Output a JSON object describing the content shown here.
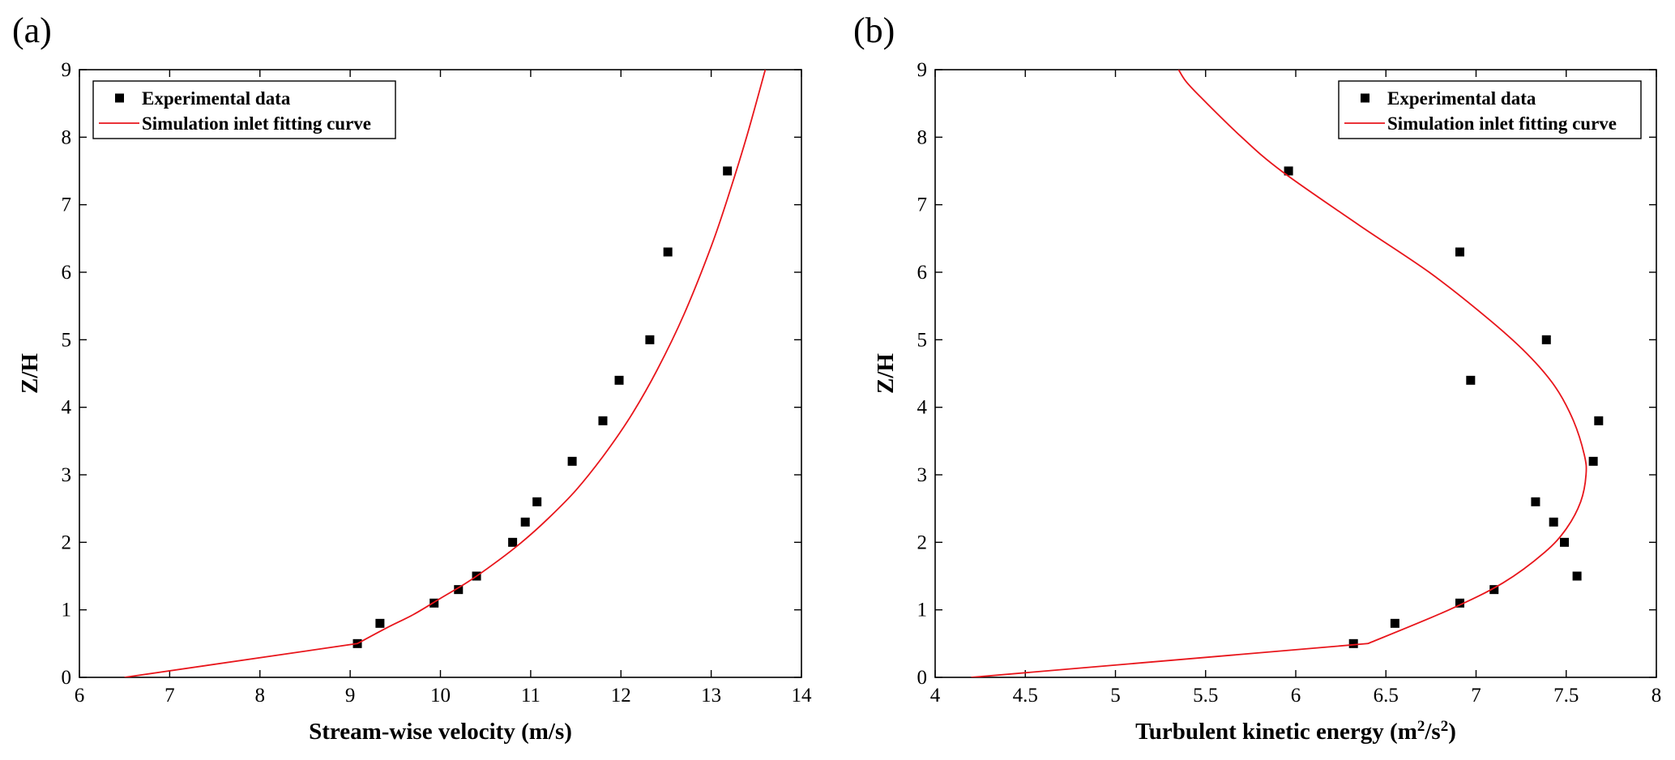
{
  "chart_data": [
    {
      "type": "scatter",
      "panel_label": "(a)",
      "xlabel": "Stream-wise velocity (m/s)",
      "xlabel_sup": null,
      "ylabel": "Z/H",
      "xlim": [
        6,
        14
      ],
      "ylim": [
        0,
        9
      ],
      "xticks": [
        6,
        7,
        8,
        9,
        10,
        11,
        12,
        13,
        14
      ],
      "yticks": [
        0,
        1,
        2,
        3,
        4,
        5,
        6,
        7,
        8,
        9
      ],
      "grid": false,
      "legend_position": "top-left",
      "series": [
        {
          "name": "Experimental data",
          "kind": "scatter",
          "color": "#000000",
          "points": [
            [
              9.08,
              0.5
            ],
            [
              9.33,
              0.8
            ],
            [
              9.93,
              1.1
            ],
            [
              10.2,
              1.3
            ],
            [
              10.4,
              1.5
            ],
            [
              10.8,
              2.0
            ],
            [
              10.94,
              2.3
            ],
            [
              11.07,
              2.6
            ],
            [
              11.46,
              3.2
            ],
            [
              11.8,
              3.8
            ],
            [
              11.98,
              4.4
            ],
            [
              12.32,
              5.0
            ],
            [
              12.52,
              6.3
            ],
            [
              13.18,
              7.5
            ]
          ]
        },
        {
          "name": "Simulation inlet fitting curve",
          "kind": "line",
          "color": "#e8151b",
          "points": [
            [
              6.5,
              0.0
            ],
            [
              9.08,
              0.5
            ],
            [
              9.4,
              0.73
            ],
            [
              9.7,
              0.93
            ],
            [
              10.0,
              1.17
            ],
            [
              10.3,
              1.41
            ],
            [
              10.6,
              1.69
            ],
            [
              10.9,
              2.0
            ],
            [
              11.2,
              2.36
            ],
            [
              11.5,
              2.77
            ],
            [
              11.8,
              3.27
            ],
            [
              12.1,
              3.85
            ],
            [
              12.4,
              4.55
            ],
            [
              12.7,
              5.38
            ],
            [
              13.0,
              6.38
            ],
            [
              13.2,
              7.17
            ],
            [
              13.4,
              8.04
            ],
            [
              13.6,
              9.0
            ]
          ]
        }
      ]
    },
    {
      "type": "scatter",
      "panel_label": "(b)",
      "xlabel": "Turbulent kinetic energy (m",
      "xlabel_sup": [
        "2",
        "/s",
        "2",
        ")"
      ],
      "ylabel": "Z/H",
      "xlim": [
        4,
        8
      ],
      "ylim": [
        0,
        9
      ],
      "xticks": [
        4,
        4.5,
        5,
        5.5,
        6,
        6.5,
        7,
        7.5,
        8
      ],
      "yticks": [
        0,
        1,
        2,
        3,
        4,
        5,
        6,
        7,
        8,
        9
      ],
      "grid": false,
      "legend_position": "top-right",
      "series": [
        {
          "name": "Experimental data",
          "kind": "scatter",
          "color": "#000000",
          "points": [
            [
              6.32,
              0.5
            ],
            [
              6.55,
              0.8
            ],
            [
              6.91,
              1.1
            ],
            [
              7.1,
              1.3
            ],
            [
              7.56,
              1.5
            ],
            [
              7.49,
              2.0
            ],
            [
              7.43,
              2.3
            ],
            [
              7.33,
              2.6
            ],
            [
              7.65,
              3.2
            ],
            [
              7.68,
              3.8
            ],
            [
              6.97,
              4.4
            ],
            [
              7.39,
              5.0
            ],
            [
              6.91,
              6.3
            ],
            [
              5.96,
              7.5
            ]
          ]
        },
        {
          "name": "Simulation inlet fitting curve",
          "kind": "line",
          "color": "#e8151b",
          "points": [
            [
              4.2,
              0.0
            ],
            [
              6.4,
              0.5
            ],
            [
              6.85,
              1.0
            ],
            [
              7.15,
              1.4
            ],
            [
              7.38,
              1.85
            ],
            [
              7.5,
              2.2
            ],
            [
              7.58,
              2.6
            ],
            [
              7.61,
              3.0
            ],
            [
              7.6,
              3.3
            ],
            [
              7.54,
              3.8
            ],
            [
              7.44,
              4.3
            ],
            [
              7.28,
              4.8
            ],
            [
              7.05,
              5.35
            ],
            [
              6.74,
              6.0
            ],
            [
              6.35,
              6.7
            ],
            [
              5.92,
              7.5
            ],
            [
              5.7,
              8.0
            ],
            [
              5.47,
              8.6
            ],
            [
              5.39,
              8.83
            ],
            [
              5.35,
              9.0
            ]
          ]
        }
      ]
    }
  ]
}
